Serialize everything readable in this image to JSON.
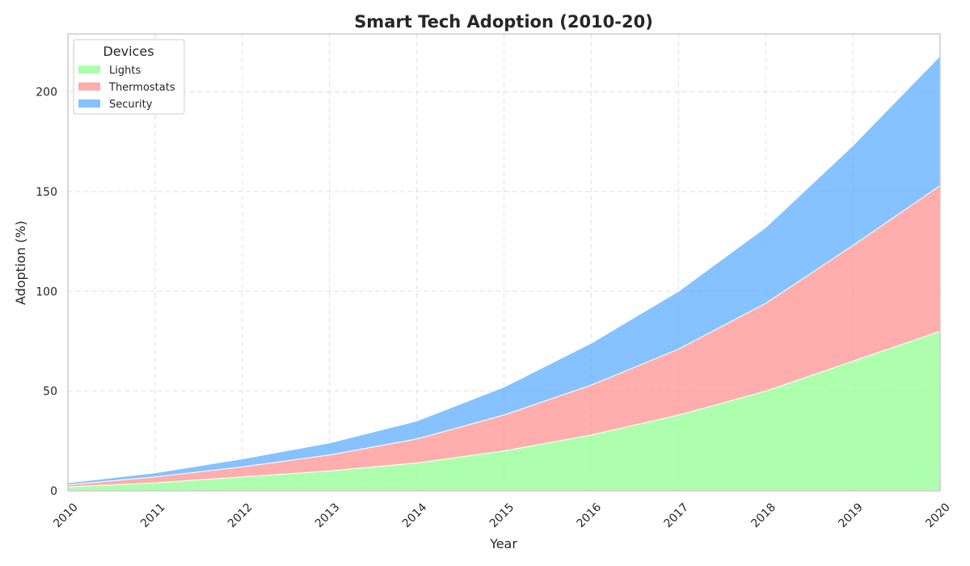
{
  "chart_data": {
    "type": "area",
    "stacked": true,
    "title": "Smart Tech Adoption (2010-20)",
    "xlabel": "Year",
    "ylabel": "Adoption (%)",
    "x": [
      2010,
      2011,
      2012,
      2013,
      2014,
      2015,
      2016,
      2017,
      2018,
      2019,
      2020
    ],
    "x_tick_labels": [
      "2010",
      "2011",
      "2012",
      "2013",
      "2014",
      "2015",
      "2016",
      "2017",
      "2018",
      "2019",
      "2020"
    ],
    "y_ticks": [
      0,
      50,
      100,
      150,
      200
    ],
    "xlim": [
      2010,
      2020
    ],
    "ylim": [
      0,
      229
    ],
    "grid": true,
    "legend": {
      "title": "Devices",
      "placement": "top-left"
    },
    "series": [
      {
        "name": "Lights",
        "color": "#99ff99",
        "values": [
          2,
          4,
          7,
          10,
          14,
          20,
          28,
          38,
          50,
          65,
          80
        ]
      },
      {
        "name": "Thermostats",
        "color": "#ff9999",
        "values": [
          1,
          3,
          5,
          8,
          12,
          18,
          25,
          33,
          44,
          58,
          73
        ]
      },
      {
        "name": "Security",
        "color": "#66b3ff",
        "values": [
          1,
          2,
          4,
          6,
          9,
          14,
          21,
          29,
          38,
          50,
          65
        ]
      }
    ]
  }
}
